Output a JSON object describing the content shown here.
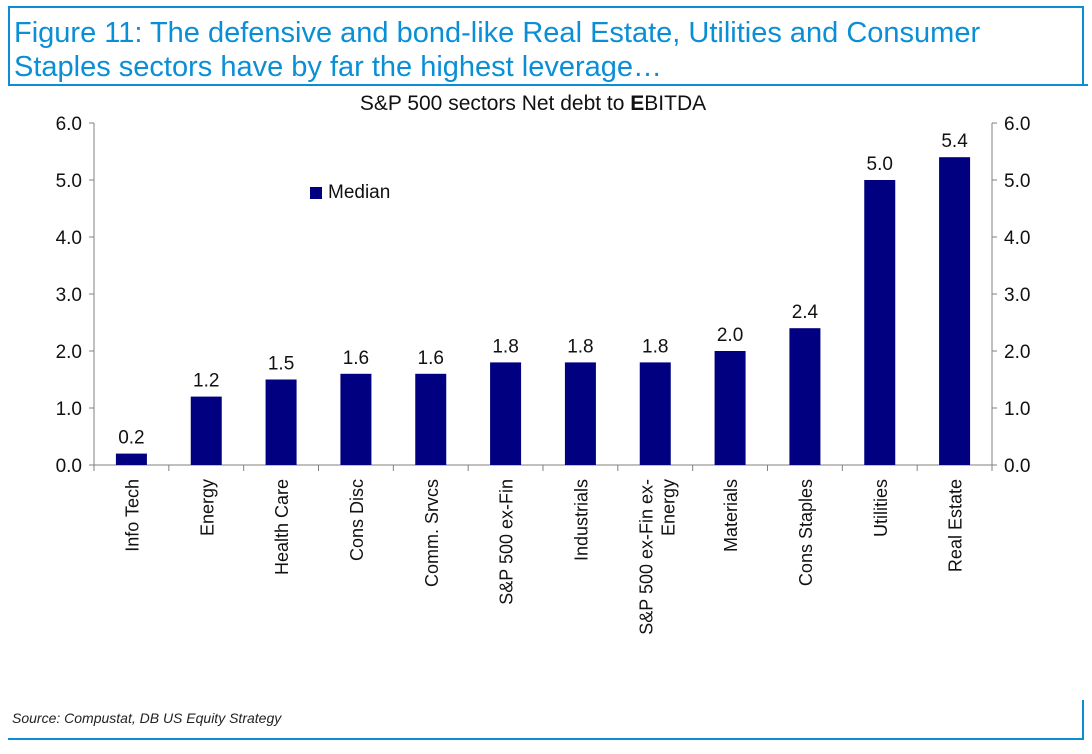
{
  "figure": {
    "title": "Figure 11: The defensive and bond-like Real Estate, Utilities and Consumer\nStaples sectors have by far the highest leverage…",
    "source": "Source: Compustat, DB US Equity Strategy"
  },
  "colors": {
    "accent": "#0a8fd6",
    "bar": "#000080",
    "axis": "#808080"
  },
  "chart_data": {
    "type": "bar",
    "title_prefix": "S&P 500 sectors Net debt to ",
    "title_bold": "E",
    "title_suffix": "BITDA",
    "categories": [
      "Info Tech",
      "Energy",
      "Health Care",
      "Cons Disc",
      "Comm. Srvcs",
      "S&P 500 ex-Fin",
      "Industrials",
      "S&P 500 ex-Fin ex-Energy",
      "Materials",
      "Cons Staples",
      "Utilities",
      "Real Estate"
    ],
    "category_lines": [
      [
        "Info Tech"
      ],
      [
        "Energy"
      ],
      [
        "Health Care"
      ],
      [
        "Cons Disc"
      ],
      [
        "Comm. Srvcs"
      ],
      [
        "S&P 500 ex-Fin"
      ],
      [
        "Industrials"
      ],
      [
        "S&P 500 ex-Fin ex-",
        "Energy"
      ],
      [
        "Materials"
      ],
      [
        "Cons Staples"
      ],
      [
        "Utilities"
      ],
      [
        "Real Estate"
      ]
    ],
    "series": [
      {
        "name": "Median",
        "values": [
          0.2,
          1.2,
          1.5,
          1.6,
          1.6,
          1.8,
          1.8,
          1.8,
          2.0,
          2.4,
          5.0,
          5.4
        ],
        "labels": [
          "0.2",
          "1.2",
          "1.5",
          "1.6",
          "1.6",
          "1.8",
          "1.8",
          "1.8",
          "2.0",
          "2.4",
          "5.0",
          "5.4"
        ]
      }
    ],
    "ylim": [
      0,
      6
    ],
    "yticks": [
      "0.0",
      "1.0",
      "2.0",
      "3.0",
      "4.0",
      "5.0",
      "6.0"
    ],
    "ytick_values": [
      0,
      1,
      2,
      3,
      4,
      5,
      6
    ],
    "secondary_axis": true,
    "legend": "top-left",
    "xlabel": "",
    "ylabel": ""
  }
}
